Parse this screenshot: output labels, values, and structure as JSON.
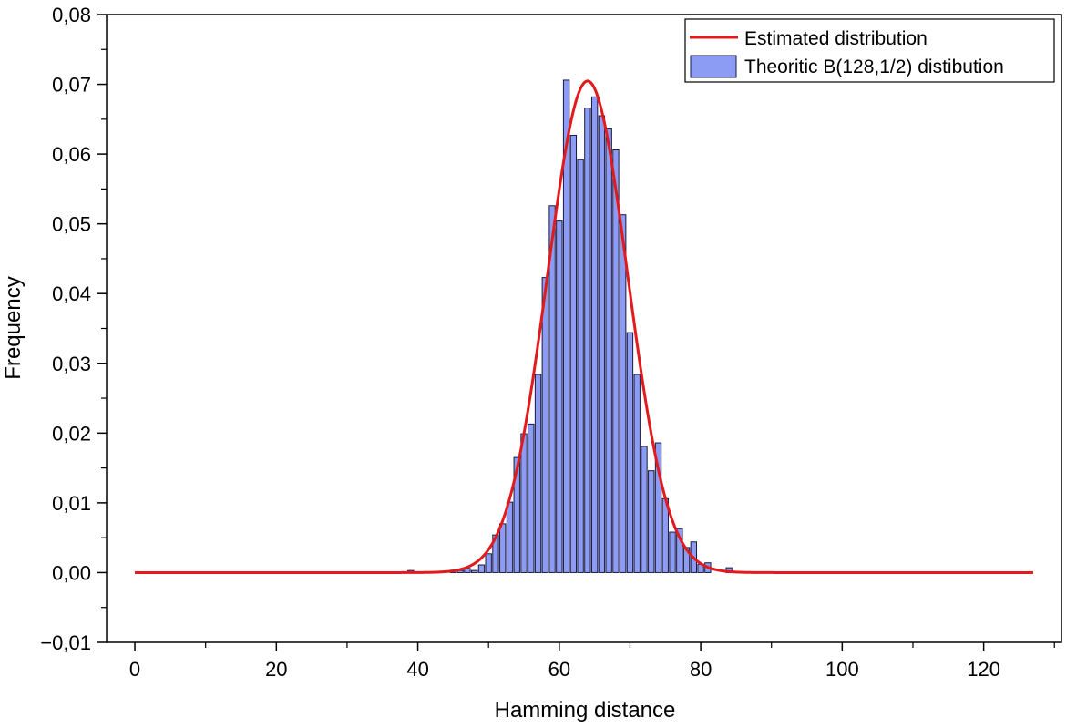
{
  "chart_data": {
    "type": "bar",
    "xlabel": "Hamming distance",
    "ylabel": "Frequency",
    "xlim": [
      -4,
      131
    ],
    "ylim": [
      -0.01,
      0.08
    ],
    "x_ticks": [
      0,
      20,
      40,
      60,
      80,
      100,
      120
    ],
    "x_tick_labels": [
      "0",
      "20",
      "40",
      "60",
      "80",
      "100",
      "120"
    ],
    "y_ticks": [
      -0.01,
      0,
      0.01,
      0.02,
      0.03,
      0.04,
      0.05,
      0.06,
      0.07,
      0.08
    ],
    "y_tick_labels": [
      "−0,01",
      "0,00",
      "0,01",
      "0,02",
      "0,03",
      "0,04",
      "0,05",
      "0,06",
      "0,07",
      "0,08"
    ],
    "grid": false,
    "legend_position": "top-right",
    "bar_series": {
      "name": "Theoritic B(128,1/2) distibution",
      "color": "#8c9cf4",
      "edge_color": "#1a1a3c",
      "x": [
        39,
        45,
        46,
        47,
        48,
        49,
        50,
        51,
        52,
        53,
        54,
        55,
        56,
        57,
        58,
        59,
        60,
        61,
        62,
        63,
        64,
        65,
        66,
        67,
        68,
        69,
        70,
        71,
        72,
        73,
        74,
        75,
        76,
        77,
        78,
        79,
        80,
        81,
        84
      ],
      "values": [
        0.0003,
        0.0002,
        0.0003,
        0.0006,
        0.0003,
        0.0011,
        0.0027,
        0.0054,
        0.007,
        0.0101,
        0.0165,
        0.0199,
        0.0213,
        0.0284,
        0.0423,
        0.0526,
        0.0504,
        0.0706,
        0.0627,
        0.0592,
        0.0666,
        0.0682,
        0.0655,
        0.0636,
        0.0606,
        0.0513,
        0.0344,
        0.0284,
        0.0181,
        0.0146,
        0.0186,
        0.0106,
        0.0058,
        0.0063,
        0.0036,
        0.0044,
        0.0012,
        0.0014,
        0.0007
      ]
    },
    "line_series": {
      "name": "Estimated distribution",
      "color": "#e31a1c",
      "mean": 64,
      "std": 5.66,
      "x_range": [
        0,
        127
      ]
    }
  }
}
